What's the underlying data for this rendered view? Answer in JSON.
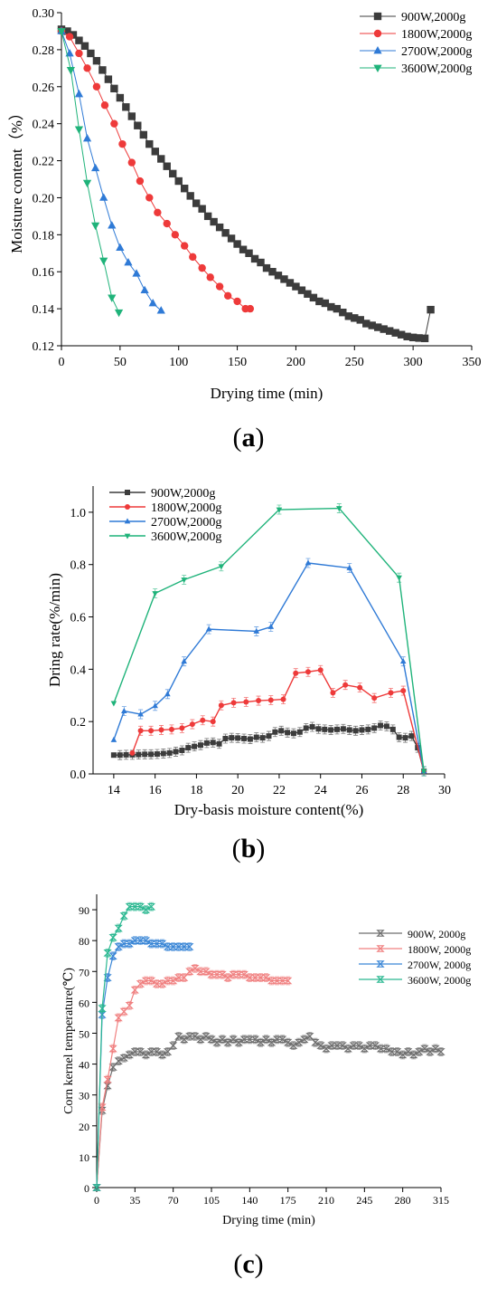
{
  "charts": [
    {
      "type": "scatter",
      "panel_label": "a",
      "xlabel": "Drying time (min)",
      "ylabel": "Moisture content（%）",
      "xlim": [
        0,
        350
      ],
      "ylim": [
        0.12,
        0.3
      ],
      "xticks": [
        0,
        50,
        100,
        150,
        200,
        250,
        300,
        350
      ],
      "yticks": [
        0.12,
        0.14,
        0.16,
        0.18,
        0.2,
        0.22,
        0.24,
        0.26,
        0.28,
        0.3
      ],
      "ytick_labels": [
        "0.12",
        "0.14",
        "0.16",
        "0.18",
        "0.20",
        "0.22",
        "0.24",
        "0.26",
        "0.28",
        "0.30"
      ],
      "legend": "top-right",
      "series": [
        {
          "name": "900W,2000g",
          "color": "#3c3c3c",
          "marker": "square",
          "x": [
            0,
            5,
            10,
            15,
            20,
            25,
            30,
            35,
            40,
            45,
            50,
            55,
            60,
            65,
            70,
            75,
            80,
            85,
            90,
            95,
            100,
            105,
            110,
            115,
            120,
            125,
            130,
            135,
            140,
            145,
            150,
            155,
            160,
            165,
            170,
            175,
            180,
            185,
            190,
            195,
            200,
            205,
            210,
            215,
            220,
            225,
            230,
            235,
            240,
            245,
            250,
            255,
            260,
            265,
            270,
            275,
            280,
            285,
            290,
            295,
            300,
            305,
            310,
            315
          ],
          "y": [
            0.291,
            0.29,
            0.288,
            0.285,
            0.282,
            0.278,
            0.274,
            0.269,
            0.264,
            0.259,
            0.254,
            0.249,
            0.244,
            0.239,
            0.234,
            0.229,
            0.225,
            0.221,
            0.217,
            0.213,
            0.209,
            0.205,
            0.201,
            0.197,
            0.194,
            0.19,
            0.187,
            0.184,
            0.181,
            0.178,
            0.175,
            0.172,
            0.17,
            0.167,
            0.165,
            0.162,
            0.16,
            0.158,
            0.156,
            0.154,
            0.152,
            0.15,
            0.148,
            0.146,
            0.144,
            0.143,
            0.141,
            0.14,
            0.138,
            0.136,
            0.135,
            0.134,
            0.132,
            0.131,
            0.13,
            0.129,
            0.128,
            0.127,
            0.126,
            0.125,
            0.1245,
            0.1242,
            0.124,
            0.1395
          ]
        },
        {
          "name": "1800W,2000g",
          "color": "#ee3a3a",
          "marker": "circle",
          "x": [
            0,
            7,
            15,
            22,
            30,
            37,
            45,
            52,
            60,
            67,
            75,
            82,
            90,
            97,
            105,
            112,
            120,
            127,
            135,
            142,
            150,
            157,
            161
          ],
          "y": [
            0.29,
            0.287,
            0.278,
            0.27,
            0.26,
            0.25,
            0.24,
            0.229,
            0.219,
            0.209,
            0.2,
            0.192,
            0.186,
            0.18,
            0.174,
            0.168,
            0.162,
            0.157,
            0.152,
            0.147,
            0.144,
            0.14,
            0.14
          ]
        },
        {
          "name": "2700W,2000g",
          "color": "#2f7ad6",
          "marker": "triangle-up",
          "x": [
            0,
            7,
            15,
            22,
            29,
            36,
            43,
            50,
            57,
            64,
            71,
            78,
            85
          ],
          "y": [
            0.29,
            0.278,
            0.256,
            0.232,
            0.216,
            0.2,
            0.185,
            0.173,
            0.165,
            0.159,
            0.15,
            0.143,
            0.139
          ]
        },
        {
          "name": "3600W,2000g",
          "color": "#1fb37a",
          "marker": "triangle-down",
          "x": [
            0,
            8,
            15,
            22,
            29,
            36,
            43,
            49
          ],
          "y": [
            0.29,
            0.269,
            0.237,
            0.208,
            0.185,
            0.166,
            0.146,
            0.138
          ]
        }
      ]
    },
    {
      "type": "line",
      "panel_label": "b",
      "xlabel": "Dry-basis moisture content(%)",
      "ylabel": "Dring rate(%/min)",
      "xlim": [
        13,
        30
      ],
      "ylim": [
        0,
        1.1
      ],
      "xticks": [
        14,
        16,
        18,
        20,
        22,
        24,
        26,
        28,
        30
      ],
      "yticks": [
        0,
        0.2,
        0.4,
        0.6,
        0.8,
        1.0
      ],
      "ytick_labels": [
        "0.0",
        "0.2",
        "0.4",
        "0.6",
        "0.8",
        "1.0"
      ],
      "legend": "top-left",
      "series": [
        {
          "name": "900W,2000g",
          "color": "#3c3c3c",
          "marker": "square",
          "x": [
            14,
            14.3,
            14.6,
            14.9,
            15.2,
            15.5,
            15.8,
            16.1,
            16.4,
            16.7,
            17.0,
            17.3,
            17.6,
            17.9,
            18.2,
            18.5,
            18.8,
            19.1,
            19.4,
            19.7,
            20.0,
            20.3,
            20.6,
            20.9,
            21.2,
            21.5,
            21.8,
            22.1,
            22.4,
            22.7,
            23.0,
            23.3,
            23.6,
            23.9,
            24.2,
            24.5,
            24.8,
            25.1,
            25.4,
            25.7,
            26.0,
            26.3,
            26.6,
            26.9,
            27.2,
            27.5,
            27.8,
            28.1,
            28.4,
            28.7,
            29.0
          ],
          "y": [
            0.072,
            0.072,
            0.073,
            0.073,
            0.074,
            0.075,
            0.075,
            0.076,
            0.078,
            0.08,
            0.085,
            0.09,
            0.1,
            0.105,
            0.11,
            0.118,
            0.12,
            0.115,
            0.135,
            0.138,
            0.137,
            0.135,
            0.133,
            0.14,
            0.138,
            0.145,
            0.16,
            0.165,
            0.158,
            0.155,
            0.16,
            0.175,
            0.18,
            0.172,
            0.17,
            0.168,
            0.17,
            0.172,
            0.168,
            0.165,
            0.168,
            0.17,
            0.175,
            0.185,
            0.182,
            0.17,
            0.14,
            0.138,
            0.145,
            0.1,
            0.01
          ]
        },
        {
          "name": "1800W,2000g",
          "color": "#ee3a3a",
          "marker": "circle",
          "x": [
            14.9,
            15.3,
            15.8,
            16.3,
            16.8,
            17.3,
            17.8,
            18.3,
            18.8,
            19.2,
            19.8,
            20.4,
            21.0,
            21.6,
            22.2,
            22.8,
            23.4,
            24.0,
            24.6,
            25.2,
            25.9,
            26.6,
            27.4,
            28.0,
            29.0
          ],
          "y": [
            0.08,
            0.165,
            0.165,
            0.168,
            0.17,
            0.175,
            0.19,
            0.205,
            0.2,
            0.262,
            0.272,
            0.275,
            0.28,
            0.282,
            0.285,
            0.385,
            0.39,
            0.397,
            0.31,
            0.34,
            0.33,
            0.29,
            0.31,
            0.318,
            0.01
          ]
        },
        {
          "name": "2700W,2000g",
          "color": "#2f7ad6",
          "marker": "triangle-up",
          "x": [
            14,
            14.5,
            15.3,
            16.0,
            16.6,
            17.4,
            18.6,
            20.9,
            21.6,
            23.4,
            25.4,
            28.0,
            29.0
          ],
          "y": [
            0.13,
            0.24,
            0.228,
            0.26,
            0.305,
            0.43,
            0.553,
            0.545,
            0.562,
            0.806,
            0.787,
            0.43,
            0.01
          ]
        },
        {
          "name": "3600W,2000g",
          "color": "#1fb37a",
          "marker": "triangle-down",
          "x": [
            14,
            16,
            17.4,
            19.2,
            22.0,
            24.9,
            27.8,
            29.0
          ],
          "y": [
            0.27,
            0.69,
            0.742,
            0.793,
            1.01,
            1.015,
            0.75,
            0.01
          ]
        }
      ]
    },
    {
      "type": "line",
      "panel_label": "c",
      "xlabel": "Drying time (min)",
      "ylabel": "Corn kernel temperature(℃)",
      "xlim": [
        0,
        315
      ],
      "ylim": [
        0,
        95
      ],
      "xticks": [
        0,
        35,
        70,
        105,
        140,
        175,
        210,
        245,
        280,
        315
      ],
      "yticks": [
        0,
        10,
        20,
        30,
        40,
        50,
        60,
        70,
        80,
        90
      ],
      "ytick_labels": [
        "0",
        "10",
        "20",
        "30",
        "40",
        "50",
        "60",
        "70",
        "80",
        "90"
      ],
      "legend": "top-right",
      "series": [
        {
          "name": "900W, 2000g",
          "color": "#6e6e6e",
          "marker": "hourglass",
          "x": [
            0,
            5,
            10,
            15,
            20,
            25,
            30,
            35,
            40,
            45,
            50,
            55,
            60,
            65,
            70,
            75,
            80,
            85,
            90,
            95,
            100,
            105,
            110,
            115,
            120,
            125,
            130,
            135,
            140,
            145,
            150,
            155,
            160,
            165,
            170,
            175,
            180,
            185,
            190,
            195,
            200,
            205,
            210,
            215,
            220,
            225,
            230,
            235,
            240,
            245,
            250,
            255,
            260,
            265,
            270,
            275,
            280,
            285,
            290,
            295,
            300,
            305,
            310,
            315
          ],
          "y": [
            0,
            25,
            33,
            39,
            41,
            42,
            43,
            44,
            44,
            43,
            44,
            44,
            43,
            44,
            46,
            49,
            48,
            49,
            49,
            48,
            49,
            48,
            47,
            48,
            47,
            48,
            47,
            48,
            48,
            48,
            47,
            48,
            47,
            48,
            48,
            47,
            46,
            47,
            48,
            49,
            47,
            46,
            45,
            46,
            46,
            46,
            45,
            46,
            46,
            45,
            46,
            46,
            45,
            45,
            44,
            44,
            43,
            44,
            43,
            44,
            45,
            44,
            45,
            44
          ]
        },
        {
          "name": "1800W, 2000g",
          "color": "#f08080",
          "marker": "hourglass",
          "x": [
            0,
            5,
            10,
            15,
            20,
            25,
            30,
            35,
            40,
            45,
            50,
            55,
            60,
            65,
            70,
            75,
            80,
            85,
            90,
            95,
            100,
            105,
            110,
            115,
            120,
            125,
            130,
            135,
            140,
            145,
            150,
            155,
            160,
            165,
            170,
            175
          ],
          "y": [
            0,
            26,
            35,
            45,
            55,
            57,
            59,
            64,
            66,
            67,
            67,
            66,
            66,
            67,
            67,
            68,
            68,
            70,
            71,
            70,
            70,
            69,
            69,
            69,
            68,
            69,
            69,
            69,
            68,
            68,
            68,
            68,
            67,
            67,
            67,
            67
          ]
        },
        {
          "name": "2700W, 2000g",
          "color": "#3a86d6",
          "marker": "hourglass",
          "x": [
            0,
            5,
            10,
            15,
            20,
            25,
            30,
            35,
            40,
            45,
            50,
            55,
            60,
            65,
            70,
            75,
            80,
            85
          ],
          "y": [
            0,
            56,
            68,
            75,
            78,
            79,
            79,
            80,
            80,
            80,
            79,
            79,
            79,
            78,
            78,
            78,
            78,
            78
          ]
        },
        {
          "name": "3600W, 2000g",
          "color": "#2bb891",
          "marker": "hourglass",
          "x": [
            0,
            5,
            10,
            15,
            20,
            25,
            30,
            35,
            40,
            45,
            50
          ],
          "y": [
            0,
            58,
            76,
            81,
            84,
            88,
            91,
            91,
            91,
            90,
            91
          ]
        }
      ]
    }
  ]
}
